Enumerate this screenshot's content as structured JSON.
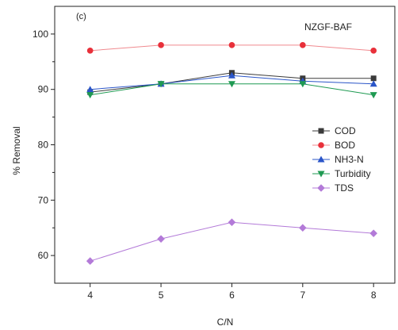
{
  "chart_data": {
    "type": "line",
    "panel_label": "(c)",
    "title": "NZGF-BAF",
    "xlabel": "C/N",
    "ylabel": "% Removal",
    "x": [
      4,
      5,
      6,
      7,
      8
    ],
    "xlim": [
      3.5,
      8.3
    ],
    "ylim": [
      55,
      105
    ],
    "xticks": [
      "4",
      "5",
      "6",
      "7",
      "8"
    ],
    "yticks": [
      "60",
      "70",
      "80",
      "90",
      "100"
    ],
    "grid": false,
    "legend_position": "right",
    "series": [
      {
        "name": "COD",
        "values": [
          89.5,
          91,
          93,
          92,
          92
        ],
        "color": "#3a3a3a",
        "marker": "square"
      },
      {
        "name": "BOD",
        "values": [
          97,
          98,
          98,
          98,
          97
        ],
        "color": "#e8303a",
        "marker": "circle"
      },
      {
        "name": "NH3-N",
        "values": [
          90,
          91,
          92.5,
          91.5,
          91
        ],
        "color": "#2a55c8",
        "marker": "triangle-up"
      },
      {
        "name": "Turbidity",
        "values": [
          89,
          91,
          91,
          91,
          89
        ],
        "color": "#1f9a52",
        "marker": "triangle-down"
      },
      {
        "name": "TDS",
        "values": [
          59,
          63,
          66,
          65,
          64
        ],
        "color": "#b37ad8",
        "marker": "diamond"
      }
    ]
  }
}
